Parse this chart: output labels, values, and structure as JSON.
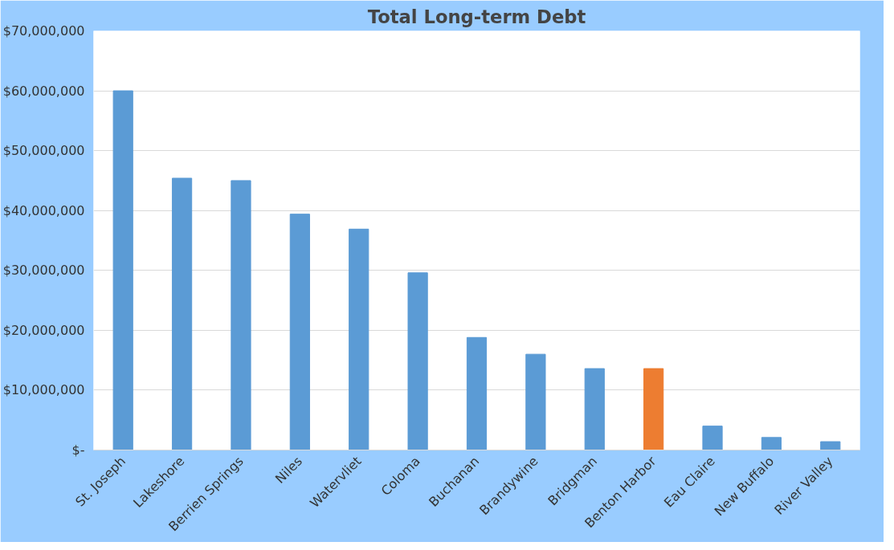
{
  "chart_data": {
    "type": "bar",
    "title": "Total Long-term Debt",
    "categories": [
      "St. Joseph",
      "Lakeshore",
      "Berrien Springs",
      "Niles",
      "Watervliet",
      "Coloma",
      "Buchanan",
      "Brandywine",
      "Bridgman",
      "Benton Harbor",
      "Eau Claire",
      "New Buffalo",
      "River Valley"
    ],
    "values": [
      60000000,
      45400000,
      45000000,
      39400000,
      36900000,
      29600000,
      18800000,
      16000000,
      13600000,
      13600000,
      4000000,
      2100000,
      1400000
    ],
    "colors": [
      "#5b9bd5",
      "#5b9bd5",
      "#5b9bd5",
      "#5b9bd5",
      "#5b9bd5",
      "#5b9bd5",
      "#5b9bd5",
      "#5b9bd5",
      "#5b9bd5",
      "#ed7d31",
      "#5b9bd5",
      "#5b9bd5",
      "#5b9bd5"
    ],
    "ylim": [
      0,
      70000000
    ],
    "yticks": [
      {
        "value": 0,
        "label": "$-"
      },
      {
        "value": 10000000,
        "label": "$10,000,000"
      },
      {
        "value": 20000000,
        "label": "$20,000,000"
      },
      {
        "value": 30000000,
        "label": "$30,000,000"
      },
      {
        "value": 40000000,
        "label": "$40,000,000"
      },
      {
        "value": 50000000,
        "label": "$50,000,000"
      },
      {
        "value": 60000000,
        "label": "$60,000,000"
      },
      {
        "value": 70000000,
        "label": "$70,000,000"
      }
    ],
    "grid": "y"
  }
}
